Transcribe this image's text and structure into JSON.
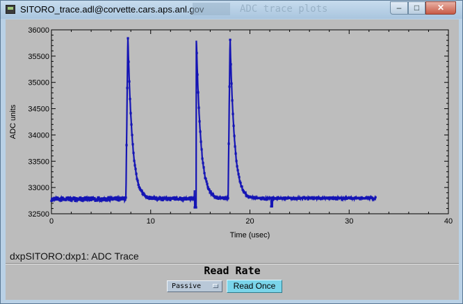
{
  "window": {
    "title": "SITORO_trace.adl@corvette.cars.aps.anl.gov",
    "background_window_title": "ADC trace plots",
    "controls": {
      "minimize": "–",
      "maximize": "□",
      "close": "✕"
    }
  },
  "panel": {
    "trace_label": "dxpSITORO:dxp1: ADC Trace",
    "read_rate_title": "Read Rate",
    "read_rate_menu_value": "Passive",
    "read_once_label": "Read Once"
  },
  "colors": {
    "trace": "#1414b4",
    "plot_background": "#bcbcbc",
    "read_once_button": "#7ad5ea"
  },
  "chart_data": {
    "type": "scatter",
    "title": "",
    "xlabel": "Time (usec)",
    "ylabel": "ADC units",
    "xlim": [
      0,
      40
    ],
    "ylim": [
      32500,
      36000
    ],
    "x_ticks": [
      "0",
      "10",
      "20",
      "30",
      "40"
    ],
    "y_ticks": [
      "32500",
      "33000",
      "33500",
      "34000",
      "34500",
      "35000",
      "35500",
      "36000"
    ],
    "series": [
      {
        "baseline": 32780,
        "x_range": [
          0,
          32.7
        ],
        "peaks": [
          {
            "x": 7.7,
            "y": 35880
          },
          {
            "x": 14.6,
            "y": 35830
          },
          {
            "x": 18.0,
            "y": 35850
          }
        ],
        "minima": [
          {
            "x": 14.5,
            "y": 32620
          },
          {
            "x": 22.2,
            "y": 32640
          }
        ]
      }
    ]
  }
}
